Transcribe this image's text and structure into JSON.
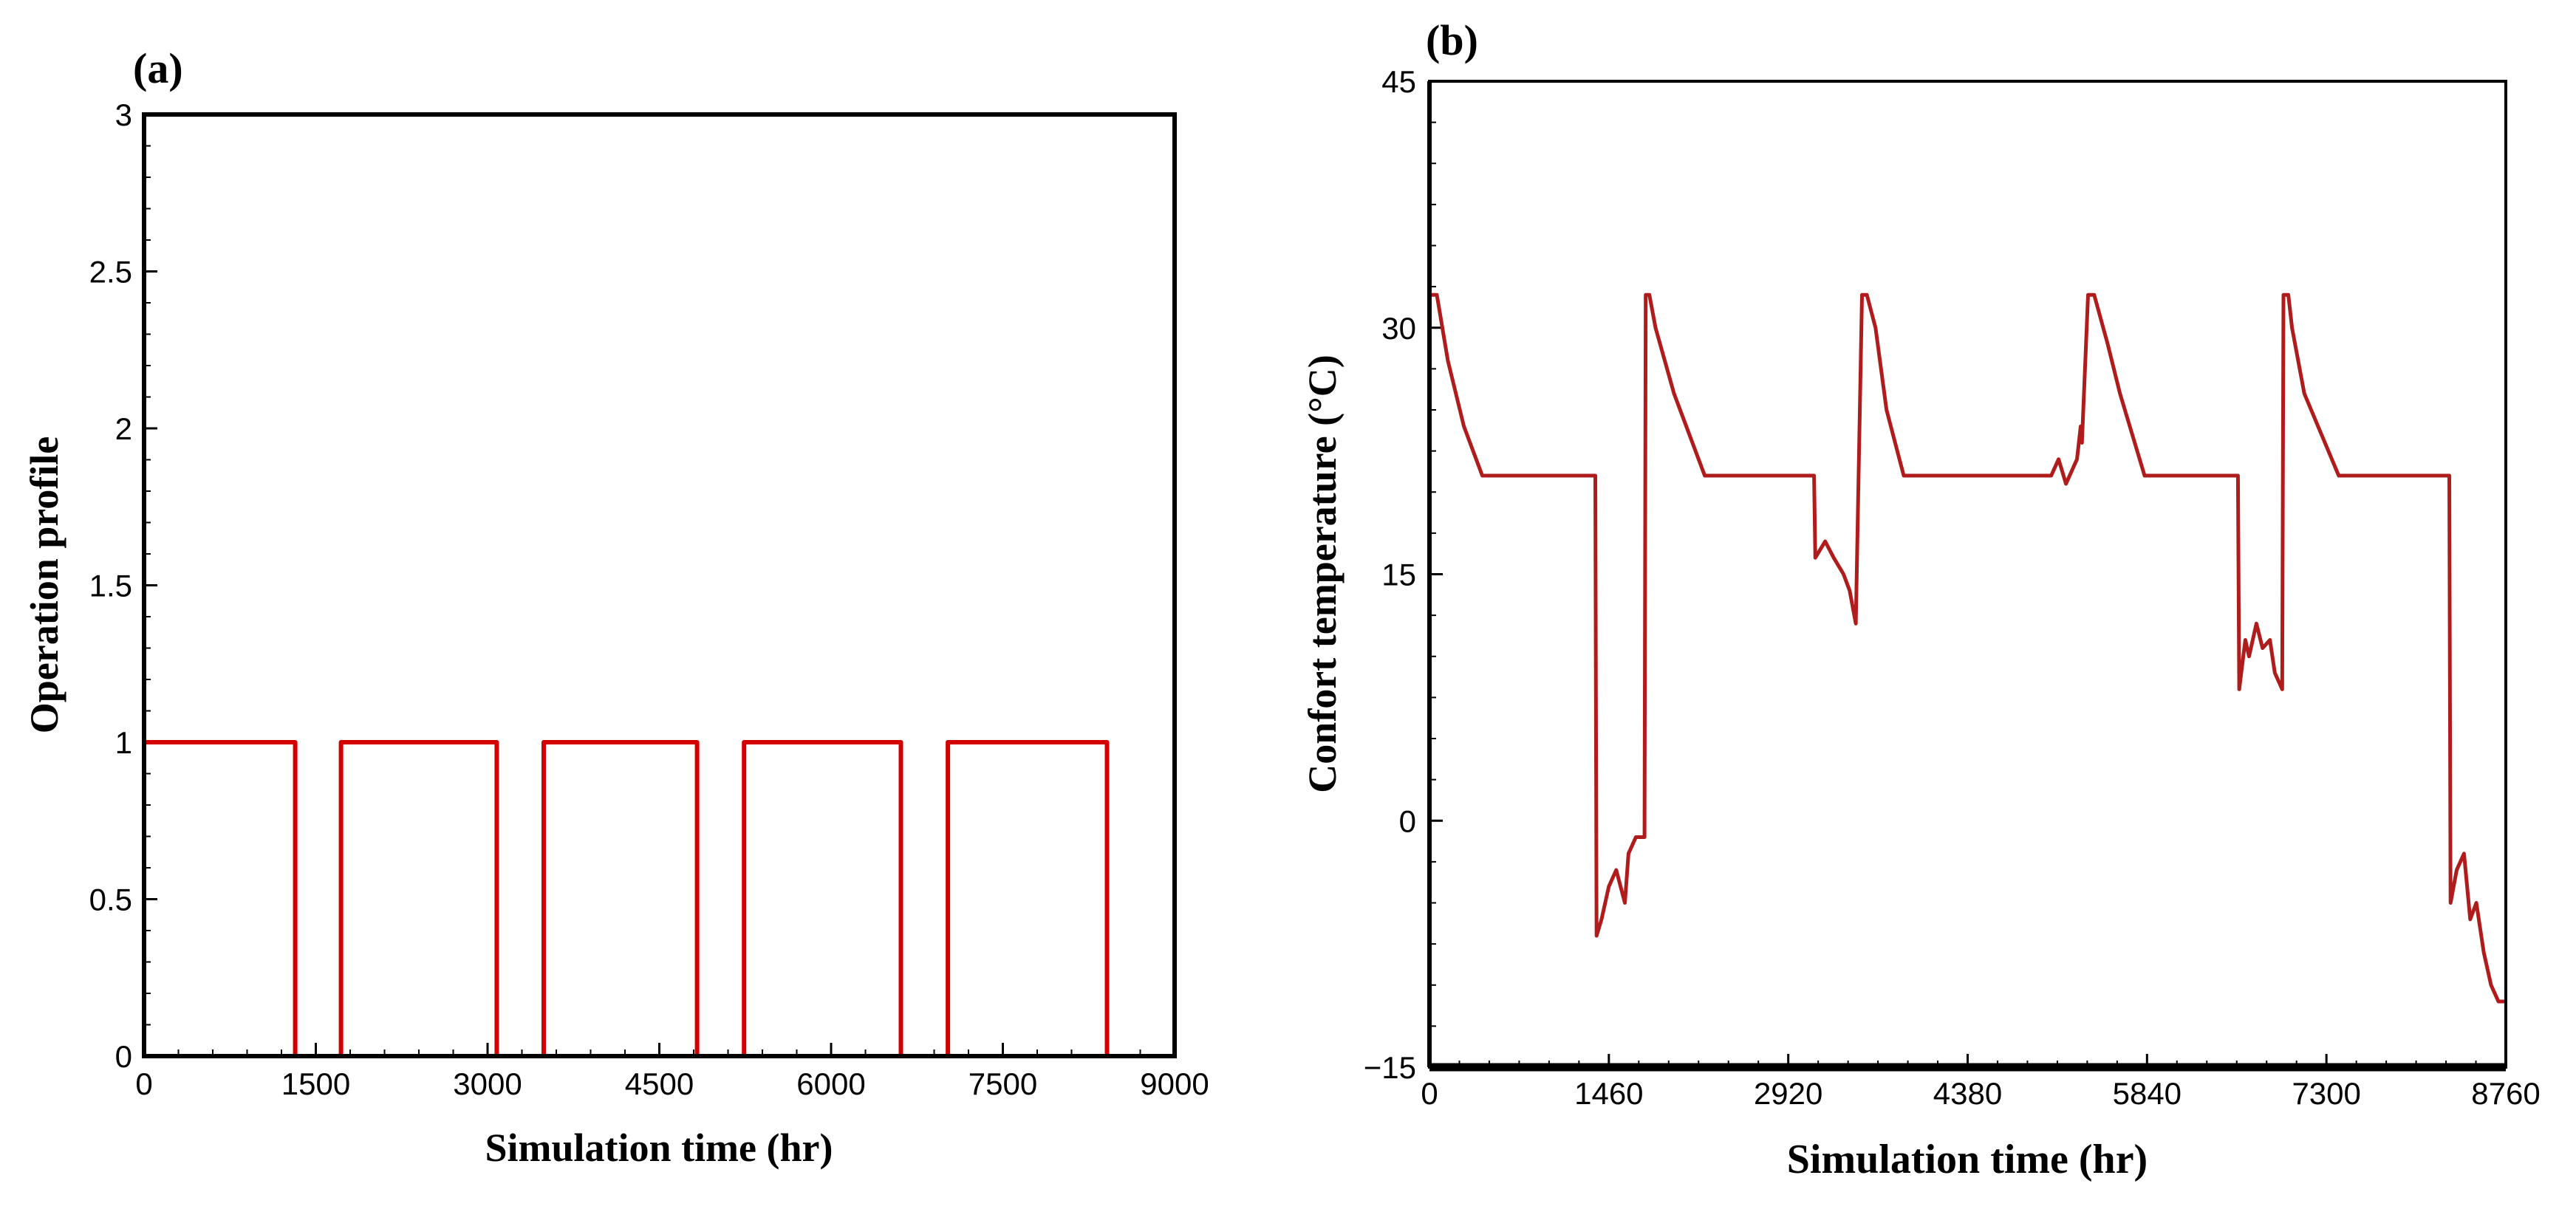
{
  "chart_data": [
    {
      "type": "line",
      "panel_label": "(a)",
      "title": "",
      "xlabel": "Simulation time (hr)",
      "ylabel": "Operation profile",
      "xlim": [
        0,
        9000
      ],
      "ylim": [
        0,
        3
      ],
      "xticks": [
        "0",
        "1500",
        "3000",
        "4500",
        "6000",
        "7500",
        "9000"
      ],
      "yticks": [
        "0",
        "0.5",
        "1",
        "1.5",
        "2",
        "2.5",
        "3"
      ],
      "grid": false,
      "series": [
        {
          "name": "Operation profile",
          "color": "#d40000",
          "x": [
            0,
            1320,
            1320,
            1720,
            1720,
            3080,
            3080,
            3490,
            3490,
            4830,
            4830,
            5240,
            5240,
            6610,
            6610,
            7020,
            7020,
            8410,
            8410
          ],
          "y": [
            1,
            1,
            0,
            0,
            1,
            1,
            0,
            0,
            1,
            1,
            0,
            0,
            1,
            1,
            0,
            0,
            1,
            1,
            0
          ]
        }
      ]
    },
    {
      "type": "line",
      "panel_label": "(b)",
      "title": "",
      "xlabel": "Simulation time (hr)",
      "ylabel": "Confort temperature (°C)",
      "xlim": [
        0,
        8760
      ],
      "ylim": [
        -15,
        45
      ],
      "xticks": [
        "0",
        "1460",
        "2920",
        "4380",
        "5840",
        "7300",
        "8760"
      ],
      "yticks": [
        "-15",
        "0",
        "15",
        "30",
        "45"
      ],
      "grid": false,
      "series": [
        {
          "name": "Confort temperature",
          "color": "#b01c1c",
          "x": [
            0,
            60,
            150,
            280,
            430,
            1350,
            1360,
            1400,
            1460,
            1520,
            1590,
            1620,
            1680,
            1750,
            1760,
            1790,
            1840,
            1990,
            2240,
            3130,
            3140,
            3220,
            3290,
            3370,
            3420,
            3470,
            3520,
            3560,
            3630,
            3720,
            3860,
            4000,
            5060,
            5120,
            5180,
            5270,
            5300,
            5310,
            5360,
            5410,
            5520,
            5620,
            5820,
            6580,
            6590,
            6640,
            6670,
            6730,
            6780,
            6840,
            6880,
            6940,
            6950,
            6990,
            7020,
            7120,
            7400,
            8300,
            8310,
            8360,
            8420,
            8470,
            8520,
            8580,
            8640,
            8700,
            8760
          ],
          "y": [
            32,
            32,
            28,
            24,
            21,
            21,
            -7,
            -6,
            -4,
            -3,
            -5,
            -2,
            -1,
            -1,
            32,
            32,
            30,
            26,
            21,
            21,
            16,
            17,
            16,
            15,
            14,
            12,
            32,
            32,
            30,
            25,
            21,
            21,
            21,
            22,
            20.5,
            22,
            24,
            23,
            32,
            32,
            29,
            26,
            21,
            21,
            8,
            11,
            10,
            12,
            10.5,
            11,
            9,
            8,
            32,
            32,
            30,
            26,
            21,
            21,
            -5,
            -3,
            -2,
            -6,
            -5,
            -8,
            -10,
            -11,
            -11
          ]
        }
      ]
    }
  ]
}
